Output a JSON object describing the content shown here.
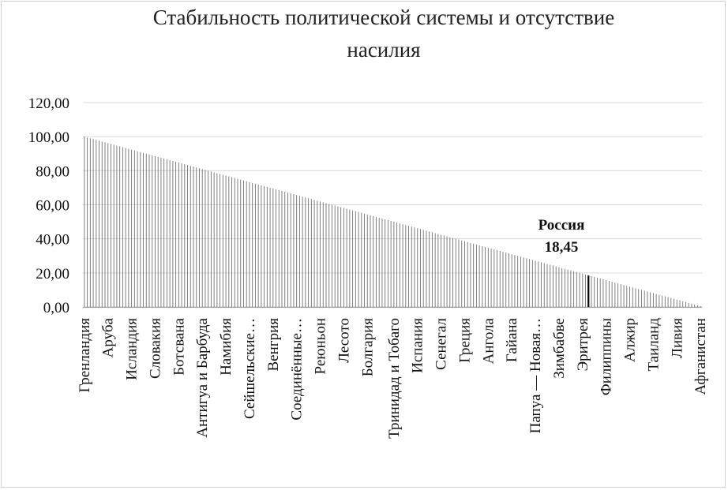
{
  "chart_data": {
    "type": "bar",
    "title": "Стабильность политической системы и отсутствие насилия",
    "title_lines": [
      "Стабильность политической системы и отсутствие",
      "насилия"
    ],
    "xlabel": "",
    "ylabel": "",
    "ylim": [
      0,
      120
    ],
    "yticks": [
      "0,00",
      "20,00",
      "40,00",
      "60,00",
      "80,00",
      "100,00",
      "120,00"
    ],
    "grid": true,
    "legend": "none",
    "bar_color": "#707070",
    "highlight_color": "#000000",
    "bar_count": 210,
    "max_value": 100,
    "min_value": 0.5,
    "category_labels": [
      "Гренландия",
      "Аруба",
      "Исландия",
      "Словакия",
      "Ботсвана",
      "Антигуа и Барбуда",
      "Намибия",
      "Сейшельские…",
      "Венгрия",
      "Соединённые…",
      "Реюньон",
      "Лесото",
      "Болгария",
      "Тринидад и Тобаго",
      "Испания",
      "Сенегал",
      "Греция",
      "Ангола",
      "Гайана",
      "Папуа — Новая…",
      "Зимбабве",
      "Эритрея",
      "Филиппины",
      "Алжир",
      "Таиланд",
      "Ливия",
      "Афганистан"
    ],
    "highlight": {
      "name": "Россия",
      "value": 18.45,
      "value_label": "18,45"
    }
  }
}
